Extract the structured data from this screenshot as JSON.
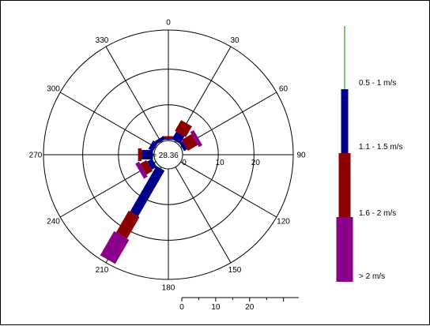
{
  "chart_data": {
    "type": "wind-rose",
    "direction_ticks": [
      "0",
      "30",
      "60",
      "90",
      "120",
      "150",
      "180",
      "210",
      "240",
      "270",
      "300",
      "330"
    ],
    "radial_ticks": [
      "0",
      "10",
      "20"
    ],
    "scale_bar_ticks": [
      "0",
      "10",
      "20"
    ],
    "calm_label": "C = 28.36",
    "rmax": 35,
    "legend": [
      {
        "label": "0.5 - 1 m/s",
        "color": "#008000"
      },
      {
        "label": "1.1 - 1.5 m/s",
        "color": "#00008b"
      },
      {
        "label": "1.6 - 2 m/s",
        "color": "#8b0000"
      },
      {
        "label": "> 2 m/s",
        "color": "#8b008b"
      }
    ],
    "series": [
      {
        "direction": 0,
        "values": [
          0.2,
          0.4,
          0.6,
          0
        ]
      },
      {
        "direction": 30,
        "values": [
          0.3,
          2.4,
          3.5,
          0
        ]
      },
      {
        "direction": 60,
        "values": [
          0.3,
          1.0,
          3.2,
          1.1
        ]
      },
      {
        "direction": 90,
        "values": [
          0.2,
          0,
          0,
          0
        ]
      },
      {
        "direction": 240,
        "values": [
          0.5,
          1.6,
          2.0,
          1.2
        ]
      },
      {
        "direction": 210,
        "values": [
          0.4,
          14.8,
          7.0,
          7.8
        ]
      },
      {
        "direction": 270,
        "values": [
          0.3,
          3.2,
          1.0,
          0
        ]
      },
      {
        "direction": 300,
        "values": [
          0.2,
          1.5,
          0,
          0
        ]
      },
      {
        "direction": 330,
        "values": [
          0.2,
          1.0,
          0,
          0
        ]
      }
    ]
  }
}
